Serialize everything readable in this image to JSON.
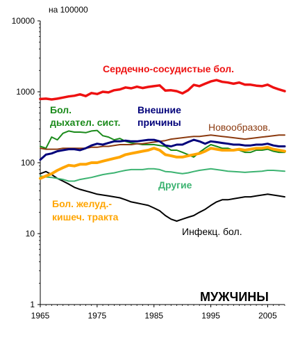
{
  "chart_data": {
    "type": "line",
    "title": "",
    "unit_label": "на 100000",
    "corner_label": "МУЖЧИНЫ",
    "xlabel": "",
    "ylabel": "",
    "y_scale": "log",
    "ylim": [
      1,
      10000
    ],
    "xlim": [
      1965,
      2008
    ],
    "x_ticks": [
      1965,
      1975,
      1985,
      1995,
      2005
    ],
    "y_ticks": [
      1,
      10,
      100,
      1000,
      10000
    ],
    "grid": false,
    "x": [
      1965,
      1966,
      1967,
      1968,
      1969,
      1970,
      1971,
      1972,
      1973,
      1974,
      1975,
      1976,
      1977,
      1978,
      1979,
      1980,
      1981,
      1982,
      1983,
      1984,
      1985,
      1986,
      1987,
      1988,
      1989,
      1990,
      1991,
      1992,
      1993,
      1994,
      1995,
      1996,
      1997,
      1998,
      1999,
      2000,
      2001,
      2002,
      2003,
      2004,
      2005,
      2006,
      2007,
      2008
    ],
    "series": [
      {
        "name": "Сердечно-сосудистые бол.",
        "color": "#ee1111",
        "label_style": "bold",
        "values": [
          790,
          800,
          780,
          800,
          830,
          860,
          880,
          920,
          870,
          960,
          930,
          1000,
          980,
          1050,
          1080,
          1150,
          1120,
          1180,
          1130,
          1170,
          1200,
          1230,
          1040,
          1050,
          1020,
          950,
          1050,
          1250,
          1200,
          1300,
          1400,
          1460,
          1380,
          1350,
          1300,
          1350,
          1260,
          1260,
          1220,
          1200,
          1260,
          1150,
          1080,
          1020
        ]
      },
      {
        "name": "Бол. дыхател. сист.",
        "color": "#1a8a1a",
        "label_style": "bold",
        "values": [
          170,
          160,
          230,
          210,
          260,
          280,
          270,
          270,
          265,
          280,
          285,
          240,
          230,
          210,
          220,
          200,
          190,
          185,
          180,
          180,
          180,
          175,
          170,
          150,
          150,
          140,
          130,
          120,
          140,
          160,
          180,
          170,
          160,
          160,
          150,
          150,
          140,
          140,
          150,
          150,
          155,
          145,
          140,
          140
        ]
      },
      {
        "name": "Внешние причины",
        "color": "#00007a",
        "label_style": "bold",
        "values": [
          110,
          130,
          135,
          145,
          150,
          155,
          155,
          150,
          160,
          175,
          185,
          180,
          190,
          200,
          200,
          205,
          200,
          200,
          205,
          210,
          210,
          200,
          175,
          170,
          180,
          180,
          195,
          210,
          200,
          185,
          200,
          195,
          190,
          185,
          180,
          180,
          175,
          175,
          180,
          180,
          185,
          175,
          170,
          170
        ]
      },
      {
        "name": "Новообразов.",
        "color": "#8b3a0f",
        "label_style": "plain",
        "values": [
          160,
          155,
          155,
          155,
          160,
          160,
          160,
          160,
          160,
          165,
          165,
          170,
          170,
          175,
          180,
          180,
          180,
          185,
          185,
          190,
          195,
          200,
          205,
          215,
          220,
          225,
          230,
          235,
          235,
          240,
          245,
          240,
          235,
          230,
          225,
          220,
          215,
          220,
          225,
          230,
          235,
          240,
          245,
          245
        ]
      },
      {
        "name": "Другие",
        "color": "#3cb371",
        "label_style": "bold",
        "values": [
          65,
          63,
          62,
          60,
          58,
          55,
          55,
          58,
          60,
          62,
          65,
          68,
          70,
          72,
          75,
          78,
          80,
          80,
          80,
          82,
          82,
          80,
          75,
          74,
          72,
          70,
          72,
          75,
          78,
          80,
          82,
          80,
          78,
          76,
          75,
          74,
          73,
          74,
          75,
          76,
          78,
          78,
          77,
          76
        ]
      },
      {
        "name": "Бол. желуд.-кишеч. тракта",
        "color": "#ffa500",
        "label_style": "bold",
        "values": [
          60,
          65,
          70,
          78,
          85,
          92,
          90,
          95,
          95,
          100,
          100,
          105,
          110,
          115,
          120,
          130,
          135,
          140,
          145,
          150,
          160,
          150,
          130,
          125,
          120,
          120,
          125,
          130,
          135,
          145,
          160,
          155,
          150,
          150,
          150,
          155,
          150,
          155,
          160,
          160,
          165,
          155,
          150,
          145
        ]
      },
      {
        "name": "Инфекц. бол.",
        "color": "#000000",
        "label_style": "plain",
        "values": [
          70,
          75,
          68,
          60,
          55,
          50,
          45,
          42,
          40,
          38,
          36,
          35,
          34,
          33,
          32,
          30,
          28,
          27,
          26,
          25,
          23,
          21,
          18,
          16,
          15,
          16,
          17,
          18,
          20,
          22,
          25,
          28,
          30,
          30,
          31,
          32,
          33,
          33,
          34,
          35,
          36,
          35,
          34,
          33
        ]
      }
    ]
  }
}
